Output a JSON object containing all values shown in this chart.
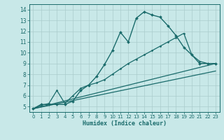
{
  "background_color": "#c8e8e8",
  "grid_color": "#aacccc",
  "line_color": "#1a6b6b",
  "xlabel": "Humidex (Indice chaleur)",
  "xlim": [
    -0.5,
    23.5
  ],
  "ylim": [
    4.5,
    14.5
  ],
  "yticks": [
    5,
    6,
    7,
    8,
    9,
    10,
    11,
    12,
    13,
    14
  ],
  "xticks": [
    0,
    1,
    2,
    3,
    4,
    5,
    6,
    7,
    8,
    9,
    10,
    11,
    12,
    13,
    14,
    15,
    16,
    17,
    18,
    19,
    20,
    21,
    22,
    23
  ],
  "series": [
    {
      "x": [
        0,
        1,
        2,
        3,
        4,
        5,
        6,
        7,
        8,
        9,
        10,
        11,
        12,
        13,
        14,
        15,
        16,
        17,
        18,
        19,
        20,
        21,
        22,
        23
      ],
      "y": [
        4.8,
        5.2,
        5.2,
        5.2,
        5.2,
        5.5,
        6.5,
        7.0,
        7.8,
        8.9,
        10.2,
        11.9,
        11.0,
        13.2,
        13.8,
        13.5,
        13.3,
        12.5,
        11.6,
        10.5,
        9.8,
        9.0,
        9.0,
        9.0
      ],
      "marker": "D",
      "marker_size": 2.0,
      "linewidth": 1.0
    },
    {
      "x": [
        0,
        1,
        2,
        3,
        4,
        5,
        6,
        7,
        8,
        9,
        10,
        11,
        12,
        13,
        14,
        15,
        16,
        17,
        18,
        19,
        20,
        21,
        22,
        23
      ],
      "y": [
        4.8,
        5.1,
        5.3,
        6.5,
        5.3,
        6.0,
        6.7,
        7.0,
        7.2,
        7.5,
        8.0,
        8.5,
        9.0,
        9.4,
        9.8,
        10.2,
        10.6,
        11.0,
        11.4,
        11.8,
        9.8,
        9.2,
        9.0,
        9.0
      ],
      "marker": "D",
      "marker_size": 1.5,
      "linewidth": 0.9
    },
    {
      "x": [
        0,
        23
      ],
      "y": [
        4.8,
        9.0
      ],
      "marker": null,
      "linewidth": 0.9
    },
    {
      "x": [
        0,
        23
      ],
      "y": [
        4.8,
        8.3
      ],
      "marker": null,
      "linewidth": 0.9
    }
  ]
}
